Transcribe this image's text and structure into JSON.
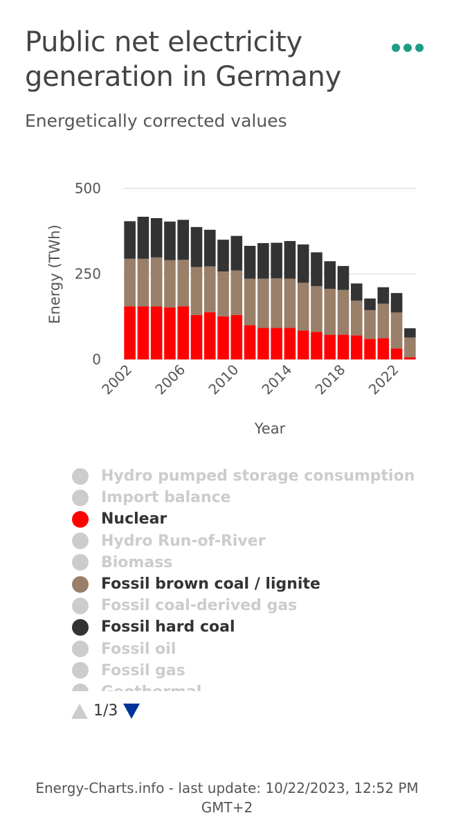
{
  "header": {
    "title": "Public net electricity generation in Germany",
    "subtitle": "Energetically corrected values",
    "menu_icon": "ellipsis-icon",
    "menu_color": "#1f9e7f"
  },
  "chart_data": {
    "type": "bar",
    "stacked": true,
    "xlabel": "Year",
    "ylabel": "Energy (TWh)",
    "ylim": [
      0,
      500
    ],
    "yticks": [
      0,
      250,
      500
    ],
    "xticks": [
      "2002",
      "2006",
      "2010",
      "2014",
      "2018",
      "2022"
    ],
    "grid": true,
    "categories": [
      "2002",
      "2003",
      "2004",
      "2005",
      "2006",
      "2007",
      "2008",
      "2009",
      "2010",
      "2011",
      "2012",
      "2013",
      "2014",
      "2015",
      "2016",
      "2017",
      "2018",
      "2019",
      "2020",
      "2021",
      "2022",
      "2023"
    ],
    "series": [
      {
        "name": "Nuclear",
        "color": "#ff0000",
        "values": [
          155,
          155,
          155,
          152,
          155,
          130,
          138,
          126,
          130,
          100,
          92,
          92,
          92,
          84,
          80,
          72,
          72,
          70,
          60,
          62,
          32,
          6
        ]
      },
      {
        "name": "Fossil brown coal / lignite",
        "color": "#9a7f69",
        "values": [
          139,
          139,
          143,
          138,
          136,
          140,
          134,
          131,
          130,
          136,
          144,
          145,
          144,
          140,
          134,
          134,
          131,
          102,
          84,
          101,
          105,
          58
        ]
      },
      {
        "name": "Fossil hard coal",
        "color": "#333333",
        "values": [
          110,
          123,
          115,
          113,
          117,
          117,
          107,
          93,
          101,
          96,
          104,
          104,
          110,
          112,
          99,
          81,
          70,
          50,
          34,
          48,
          57,
          27
        ]
      }
    ]
  },
  "legend": {
    "items": [
      {
        "label": "Hydro pumped storage consumption",
        "color": "#cccccc",
        "active": false
      },
      {
        "label": "Import balance",
        "color": "#cccccc",
        "active": false
      },
      {
        "label": "Nuclear",
        "color": "#ff0000",
        "active": true
      },
      {
        "label": "Hydro Run-of-River",
        "color": "#cccccc",
        "active": false
      },
      {
        "label": "Biomass",
        "color": "#cccccc",
        "active": false
      },
      {
        "label": "Fossil brown coal / lignite",
        "color": "#9a7f69",
        "active": true
      },
      {
        "label": "Fossil coal-derived gas",
        "color": "#cccccc",
        "active": false
      },
      {
        "label": "Fossil hard coal",
        "color": "#333333",
        "active": true
      },
      {
        "label": "Fossil oil",
        "color": "#cccccc",
        "active": false
      },
      {
        "label": "Fossil gas",
        "color": "#cccccc",
        "active": false
      },
      {
        "label": "Geothermal",
        "color": "#cccccc",
        "active": false
      }
    ],
    "inactive_text_color": "#cccccc",
    "active_text_color": "#333333",
    "pager": {
      "text": "1/3"
    }
  },
  "footer": {
    "text": "Energy-Charts.info - last update: 10/22/2023, 12:52 PM GMT+2"
  }
}
